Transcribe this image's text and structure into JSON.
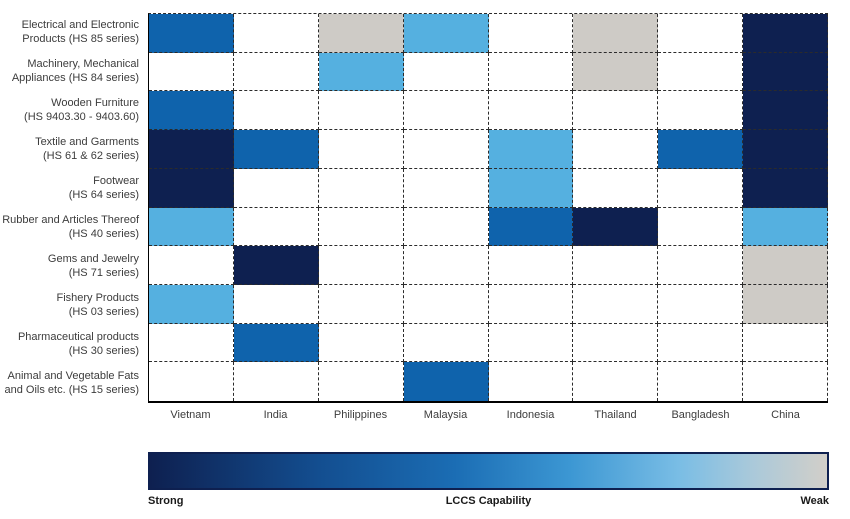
{
  "chart_data": {
    "type": "heatmap",
    "title": "",
    "x_categories": [
      "Vietnam",
      "India",
      "Philippines",
      "Malaysia",
      "Indonesia",
      "Thailand",
      "Bangladesh",
      "China"
    ],
    "y_categories": [
      {
        "line1": "Electrical and Electronic",
        "line2": "Products (HS 85 series)"
      },
      {
        "line1": "Machinery, Mechanical",
        "line2": "Appliances (HS 84 series)"
      },
      {
        "line1": "Wooden Furniture",
        "line2": "(HS 9403.30 - 9403.60)"
      },
      {
        "line1": "Textile and Garments",
        "line2": "(HS 61 & 62 series)"
      },
      {
        "line1": "Footwear",
        "line2": "(HS 64 series)"
      },
      {
        "line1": "Rubber and Articles Thereof",
        "line2": "(HS 40 series)"
      },
      {
        "line1": "Gems and Jewelry",
        "line2": "(HS 71 series)"
      },
      {
        "line1": "Fishery Products",
        "line2": "(HS 03 series)"
      },
      {
        "line1": "Pharmaceutical products",
        "line2": "(HS 30 series)"
      },
      {
        "line1": "Animal and Vegetable Fats",
        "line2": "and Oils etc. (HS 15 series)"
      }
    ],
    "levels": {
      "strong": "#0e2050",
      "moderate": "#0f63ac",
      "fair": "#55b0e0",
      "weak": "#cecbc6",
      "none": "#ffffff"
    },
    "matrix": [
      [
        "moderate",
        "none",
        "weak",
        "fair",
        "none",
        "weak",
        "none",
        "strong"
      ],
      [
        "none",
        "none",
        "fair",
        "none",
        "none",
        "weak",
        "none",
        "strong"
      ],
      [
        "moderate",
        "none",
        "none",
        "none",
        "none",
        "none",
        "none",
        "strong"
      ],
      [
        "strong",
        "moderate",
        "none",
        "none",
        "fair",
        "none",
        "moderate",
        "strong"
      ],
      [
        "strong",
        "none",
        "none",
        "none",
        "fair",
        "none",
        "none",
        "strong"
      ],
      [
        "fair",
        "none",
        "none",
        "none",
        "moderate",
        "strong",
        "none",
        "fair"
      ],
      [
        "none",
        "strong",
        "none",
        "none",
        "none",
        "none",
        "none",
        "weak"
      ],
      [
        "fair",
        "none",
        "none",
        "none",
        "none",
        "none",
        "none",
        "weak"
      ],
      [
        "none",
        "moderate",
        "none",
        "none",
        "none",
        "none",
        "none",
        "none"
      ],
      [
        "none",
        "none",
        "none",
        "moderate",
        "none",
        "none",
        "none",
        "none"
      ]
    ],
    "legend": {
      "title": "LCCS Capability",
      "left_label": "Strong",
      "right_label": "Weak",
      "gradient_stops": [
        "#0e2050 0%",
        "#134e90 25%",
        "#1b6db4 45%",
        "#3c97d3 62%",
        "#79bde5 78%",
        "#aac9da 89%",
        "#d2cfc9 100%"
      ],
      "border_color": "#0e2050"
    },
    "layout": {
      "grid_on": true,
      "gridline_style": "dashed",
      "legend_position": "bottom"
    }
  }
}
